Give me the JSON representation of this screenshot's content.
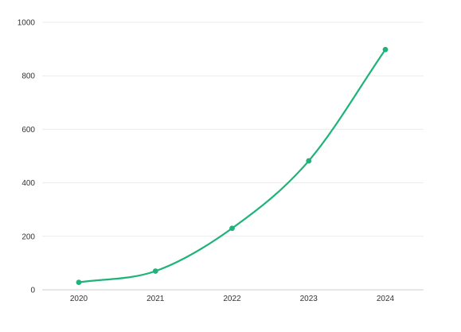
{
  "chart_data": {
    "type": "line",
    "title": "",
    "xlabel": "",
    "ylabel": "",
    "x": [
      "2020",
      "2021",
      "2022",
      "2023",
      "2024"
    ],
    "series": [
      {
        "values": [
          28,
          70,
          230,
          482,
          898
        ]
      }
    ],
    "ylim": [
      0,
      1000
    ],
    "yticks": [
      0,
      200,
      400,
      600,
      800,
      1000
    ],
    "grid": true,
    "legend": "none",
    "smooth": true,
    "markers": true,
    "color": "#1fb37a"
  }
}
